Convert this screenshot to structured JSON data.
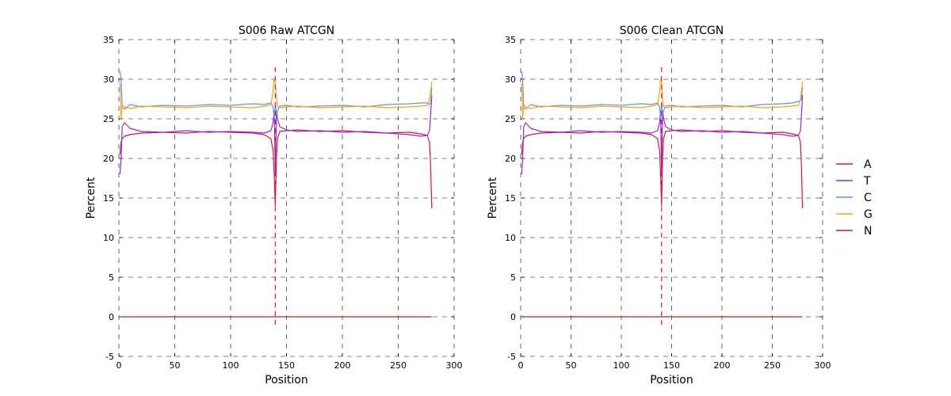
{
  "chart_data": {
    "type": "line",
    "legend": {
      "placement": "right",
      "entries": [
        {
          "label": "A",
          "color": "#dc143c"
        },
        {
          "label": "T",
          "color": "#8a2be2"
        },
        {
          "label": "C",
          "color": "#6495ed"
        },
        {
          "label": "G",
          "color": "#ffa500"
        },
        {
          "label": "N",
          "color": "#b22222"
        }
      ]
    },
    "panels": [
      {
        "title": "S006 Raw ATCGN",
        "xlabel": "Position",
        "ylabel": "Percent",
        "xlim": [
          0,
          300
        ],
        "ylim": [
          -5,
          35
        ],
        "xticks": [
          0,
          50,
          100,
          150,
          200,
          250,
          300
        ],
        "yticks": [
          -5,
          0,
          5,
          10,
          15,
          20,
          25,
          30,
          35
        ],
        "grid": true,
        "vline": {
          "x": 140,
          "color": "#dc143c",
          "style": "dashed"
        },
        "series": [
          {
            "name": "A",
            "color": "#dc143c",
            "x": [
              1,
              2,
              3,
              5,
              10,
              20,
              40,
              60,
              80,
              100,
              120,
              130,
              136,
              138,
              139,
              140,
              141,
              142,
              144,
              150,
              160,
              180,
              200,
              220,
              240,
              260,
              270,
              276,
              278,
              279,
              280
            ],
            "values": [
              20.5,
              22.0,
              22.5,
              22.8,
              23.0,
              23.2,
              23.3,
              23.2,
              23.4,
              23.3,
              23.2,
              23.0,
              22.5,
              21.0,
              18.0,
              14.0,
              20.0,
              22.5,
              23.4,
              23.5,
              23.6,
              23.4,
              23.5,
              23.3,
              23.2,
              23.3,
              23.1,
              22.9,
              22.0,
              19.0,
              13.7
            ]
          },
          {
            "name": "T",
            "color": "#8a2be2",
            "x": [
              1,
              2,
              3,
              5,
              10,
              20,
              40,
              60,
              80,
              100,
              120,
              130,
              136,
              138,
              139,
              140,
              141,
              142,
              144,
              150,
              160,
              180,
              200,
              220,
              240,
              260,
              270,
              276,
              278,
              279,
              280
            ],
            "values": [
              18.0,
              20.0,
              24.0,
              24.5,
              23.8,
              23.4,
              23.3,
              23.5,
              23.3,
              23.4,
              23.3,
              23.2,
              23.5,
              24.5,
              26.0,
              18.0,
              26.0,
              25.0,
              24.0,
              23.6,
              23.4,
              23.5,
              23.3,
              23.4,
              23.2,
              23.0,
              22.8,
              22.9,
              23.5,
              25.5,
              28.0
            ]
          },
          {
            "name": "C",
            "color": "#6495ed",
            "x": [
              1,
              2,
              3,
              5,
              10,
              20,
              40,
              60,
              80,
              100,
              120,
              130,
              136,
              138,
              139,
              140,
              141,
              142,
              144,
              150,
              160,
              180,
              200,
              220,
              240,
              260,
              270,
              276,
              278,
              279,
              280
            ],
            "values": [
              31.0,
              30.0,
              26.5,
              26.2,
              26.8,
              26.5,
              26.7,
              26.6,
              26.8,
              26.7,
              26.9,
              26.8,
              27.0,
              26.5,
              25.0,
              27.0,
              25.5,
              26.0,
              26.6,
              26.7,
              26.5,
              26.6,
              26.7,
              26.5,
              26.8,
              26.9,
              27.0,
              27.0,
              26.8,
              27.0,
              29.0
            ]
          },
          {
            "name": "G",
            "color": "#ffa500",
            "x": [
              1,
              2,
              3,
              5,
              10,
              20,
              40,
              60,
              80,
              100,
              120,
              130,
              136,
              138,
              139,
              140,
              141,
              142,
              144,
              150,
              160,
              180,
              200,
              220,
              240,
              260,
              270,
              276,
              278,
              279,
              280
            ],
            "values": [
              29.5,
              25.0,
              26.8,
              26.5,
              26.3,
              26.6,
              26.5,
              26.4,
              26.6,
              26.5,
              26.4,
              26.6,
              26.8,
              28.5,
              30.0,
              29.5,
              27.5,
              26.5,
              26.4,
              26.5,
              26.6,
              26.4,
              26.5,
              26.6,
              26.4,
              26.5,
              26.6,
              26.7,
              27.5,
              28.5,
              29.7
            ]
          },
          {
            "name": "N",
            "color": "#b22222",
            "x": [
              0,
              280
            ],
            "values": [
              0,
              0
            ]
          }
        ]
      },
      {
        "title": "S006 Clean ATCGN",
        "xlabel": "Position",
        "ylabel": "Percent",
        "xlim": [
          0,
          300
        ],
        "ylim": [
          -5,
          35
        ],
        "xticks": [
          0,
          50,
          100,
          150,
          200,
          250,
          300
        ],
        "yticks": [
          -5,
          0,
          5,
          10,
          15,
          20,
          25,
          30,
          35
        ],
        "grid": true,
        "vline": {
          "x": 140,
          "color": "#dc143c",
          "style": "dashed"
        },
        "series": [
          {
            "name": "A",
            "color": "#dc143c",
            "x": [
              1,
              2,
              3,
              5,
              10,
              20,
              40,
              60,
              80,
              100,
              120,
              130,
              136,
              138,
              139,
              140,
              141,
              142,
              144,
              150,
              160,
              180,
              200,
              220,
              240,
              260,
              270,
              276,
              278,
              279,
              280
            ],
            "values": [
              20.5,
              22.0,
              22.5,
              22.8,
              23.0,
              23.2,
              23.3,
              23.2,
              23.4,
              23.3,
              23.2,
              23.0,
              22.5,
              21.0,
              18.0,
              14.0,
              20.0,
              22.5,
              23.4,
              23.5,
              23.6,
              23.4,
              23.5,
              23.3,
              23.2,
              23.3,
              23.1,
              22.9,
              22.0,
              19.0,
              13.7
            ]
          },
          {
            "name": "T",
            "color": "#8a2be2",
            "x": [
              1,
              2,
              3,
              5,
              10,
              20,
              40,
              60,
              80,
              100,
              120,
              130,
              136,
              138,
              139,
              140,
              141,
              142,
              144,
              150,
              160,
              180,
              200,
              220,
              240,
              260,
              270,
              276,
              278,
              279,
              280
            ],
            "values": [
              18.0,
              20.0,
              24.0,
              24.5,
              23.8,
              23.4,
              23.3,
              23.5,
              23.3,
              23.4,
              23.3,
              23.2,
              23.5,
              24.5,
              26.0,
              18.0,
              26.0,
              25.0,
              24.0,
              23.6,
              23.4,
              23.5,
              23.3,
              23.4,
              23.2,
              23.0,
              22.8,
              22.9,
              23.5,
              25.5,
              28.0
            ]
          },
          {
            "name": "C",
            "color": "#6495ed",
            "x": [
              1,
              2,
              3,
              5,
              10,
              20,
              40,
              60,
              80,
              100,
              120,
              130,
              136,
              138,
              139,
              140,
              141,
              142,
              144,
              150,
              160,
              180,
              200,
              220,
              240,
              260,
              270,
              276,
              278,
              279,
              280
            ],
            "values": [
              31.0,
              30.0,
              26.5,
              26.2,
              26.8,
              26.5,
              26.7,
              26.6,
              26.8,
              26.7,
              26.9,
              26.8,
              27.0,
              26.5,
              25.0,
              27.0,
              25.5,
              26.0,
              26.6,
              26.7,
              26.5,
              26.6,
              26.7,
              26.5,
              26.8,
              26.9,
              27.0,
              27.2,
              27.3,
              27.5,
              29.0
            ]
          },
          {
            "name": "G",
            "color": "#ffa500",
            "x": [
              1,
              2,
              3,
              5,
              10,
              20,
              40,
              60,
              80,
              100,
              120,
              130,
              136,
              138,
              139,
              140,
              141,
              142,
              144,
              150,
              160,
              180,
              200,
              220,
              240,
              260,
              270,
              276,
              278,
              279,
              280
            ],
            "values": [
              29.5,
              25.0,
              26.8,
              26.5,
              26.3,
              26.6,
              26.5,
              26.4,
              26.6,
              26.5,
              26.4,
              26.6,
              26.8,
              28.5,
              30.0,
              29.5,
              27.5,
              26.5,
              26.4,
              26.5,
              26.6,
              26.4,
              26.5,
              26.6,
              26.4,
              26.5,
              26.6,
              26.7,
              27.5,
              28.5,
              29.7
            ]
          },
          {
            "name": "N",
            "color": "#b22222",
            "x": [
              0,
              280
            ],
            "values": [
              0,
              0
            ]
          }
        ]
      }
    ]
  }
}
